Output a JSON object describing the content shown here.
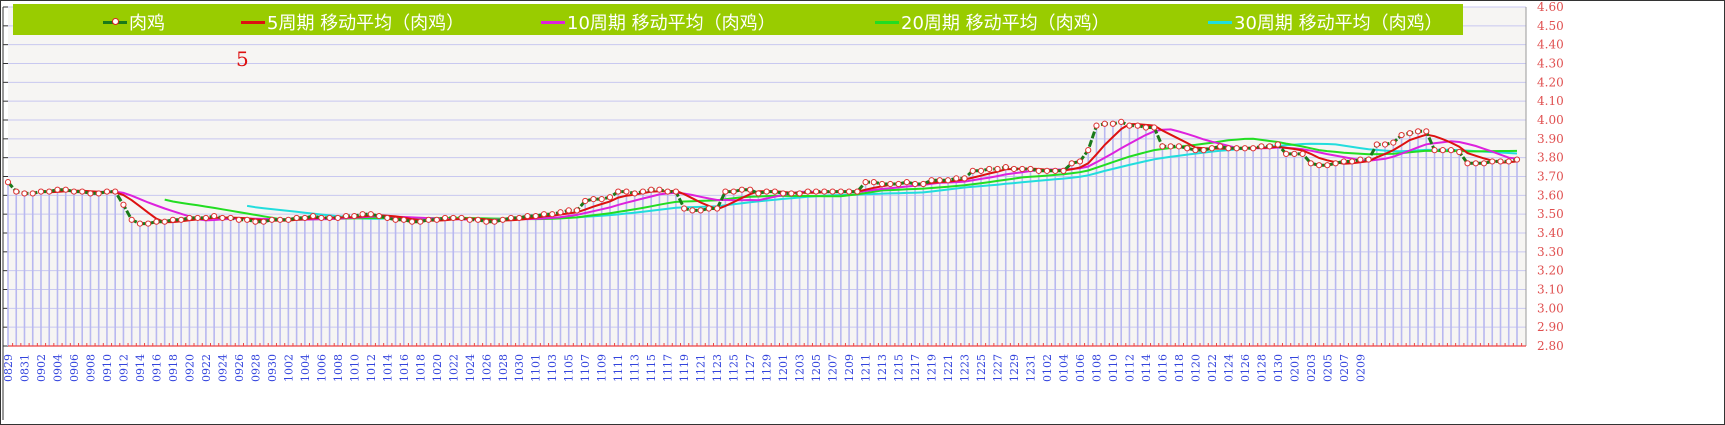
{
  "chart_data": {
    "type": "line",
    "title": "",
    "xlabel": "",
    "ylabel": "",
    "ylim": [
      2.8,
      4.6
    ],
    "ytick_step": 0.1,
    "ytick_labels": [
      "4.60",
      "4.50",
      "4.40",
      "4.30",
      "4.20",
      "4.10",
      "4.00",
      "3.90",
      "3.80",
      "3.70",
      "3.60",
      "3.50",
      "3.40",
      "3.30",
      "3.20",
      "3.10",
      "3.00",
      "2.90",
      "2.80"
    ],
    "grid": true,
    "legend_position": "top",
    "annotation": "5",
    "x_tick_labels": [
      "0829",
      "0831",
      "0902",
      "0904",
      "0906",
      "0908",
      "0910",
      "0912",
      "0914",
      "0916",
      "0918",
      "0920",
      "0922",
      "0924",
      "0926",
      "0928",
      "0930",
      "1002",
      "1004",
      "1006",
      "1008",
      "1010",
      "1012",
      "1014",
      "1016",
      "1018",
      "1020",
      "1022",
      "1024",
      "1026",
      "1028",
      "1030",
      "1101",
      "1103",
      "1105",
      "1107",
      "1109",
      "1111",
      "1113",
      "1115",
      "1117",
      "1119",
      "1121",
      "1123",
      "1125",
      "1127",
      "1129",
      "1201",
      "1203",
      "1205",
      "1207",
      "1209",
      "1211",
      "1213",
      "1215",
      "1217",
      "1219",
      "1221",
      "1223",
      "1225",
      "1227",
      "1229",
      "1231",
      "0102",
      "0104",
      "0106",
      "0108",
      "0110",
      "0112",
      "0114",
      "0116",
      "0118",
      "0120",
      "0122",
      "0124",
      "0126",
      "0128",
      "0130",
      "0201",
      "0203",
      "0205",
      "0207",
      "0209"
    ],
    "series": [
      {
        "name": "肉鸡",
        "color": "#1a7a1a",
        "marker": "circle",
        "values": [
          3.67,
          3.62,
          3.61,
          3.61,
          3.62,
          3.62,
          3.63,
          3.63,
          3.62,
          3.62,
          3.61,
          3.61,
          3.62,
          3.62,
          3.55,
          3.47,
          3.45,
          3.45,
          3.46,
          3.46,
          3.47,
          3.47,
          3.48,
          3.48,
          3.48,
          3.49,
          3.48,
          3.48,
          3.47,
          3.47,
          3.46,
          3.46,
          3.47,
          3.47,
          3.47,
          3.48,
          3.48,
          3.49,
          3.48,
          3.48,
          3.48,
          3.49,
          3.49,
          3.5,
          3.5,
          3.49,
          3.48,
          3.47,
          3.47,
          3.46,
          3.46,
          3.47,
          3.47,
          3.48,
          3.48,
          3.48,
          3.47,
          3.47,
          3.46,
          3.46,
          3.47,
          3.48,
          3.48,
          3.49,
          3.49,
          3.5,
          3.5,
          3.51,
          3.52,
          3.52,
          3.57,
          3.58,
          3.58,
          3.59,
          3.62,
          3.62,
          3.61,
          3.62,
          3.63,
          3.63,
          3.62,
          3.62,
          3.53,
          3.52,
          3.52,
          3.53,
          3.53,
          3.62,
          3.62,
          3.63,
          3.63,
          3.61,
          3.62,
          3.62,
          3.61,
          3.61,
          3.61,
          3.62,
          3.62,
          3.62,
          3.62,
          3.62,
          3.62,
          3.62,
          3.67,
          3.67,
          3.66,
          3.66,
          3.66,
          3.67,
          3.66,
          3.66,
          3.68,
          3.68,
          3.68,
          3.69,
          3.69,
          3.73,
          3.73,
          3.74,
          3.74,
          3.75,
          3.74,
          3.74,
          3.74,
          3.73,
          3.73,
          3.73,
          3.73,
          3.77,
          3.78,
          3.84,
          3.97,
          3.98,
          3.98,
          3.99,
          3.97,
          3.97,
          3.96,
          3.96,
          3.86,
          3.86,
          3.86,
          3.85,
          3.84,
          3.84,
          3.85,
          3.86,
          3.85,
          3.85,
          3.85,
          3.85,
          3.86,
          3.86,
          3.87,
          3.82,
          3.82,
          3.82,
          3.77,
          3.76,
          3.76,
          3.77,
          3.78,
          3.78,
          3.79,
          3.79,
          3.87,
          3.87,
          3.88,
          3.92,
          3.93,
          3.94,
          3.94,
          3.84,
          3.84,
          3.84,
          3.83,
          3.77,
          3.77,
          3.77,
          3.78,
          3.78,
          3.78,
          3.79
        ]
      },
      {
        "name": "5周期 移动平均（肉鸡）",
        "color": "#dd1111",
        "period": 5
      },
      {
        "name": "10周期 移动平均（肉鸡）",
        "color": "#dd22dd",
        "period": 10
      },
      {
        "name": "20周期 移动平均（肉鸡）",
        "color": "#22dd22",
        "period": 20
      },
      {
        "name": "30周期 移动平均（肉鸡）",
        "color": "#22dddd",
        "period": 30
      }
    ]
  },
  "legend": {
    "items": [
      {
        "label": "肉鸡",
        "color": "#1a7a1a"
      },
      {
        "label": "5周期 移动平均（肉鸡）",
        "color": "#dd1111"
      },
      {
        "label": "10周期 移动平均（肉鸡）",
        "color": "#dd22dd"
      },
      {
        "label": "20周期 移动平均（肉鸡）",
        "color": "#22dd22"
      },
      {
        "label": "30周期 移动平均（肉鸡）",
        "color": "#22dddd"
      }
    ]
  },
  "colors": {
    "legend_bg": "#99cc00",
    "ytick": "#e05050",
    "xtick": "#3344dd",
    "grid": "#c8c8f0",
    "dropline": "#b8b8f0"
  }
}
